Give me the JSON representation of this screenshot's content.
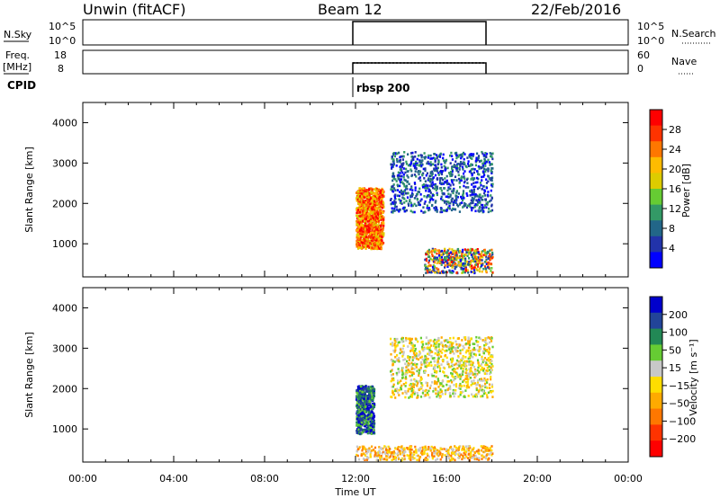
{
  "header": {
    "station": "Unwin (fitACF)",
    "beam": "Beam 12",
    "date": "22/Feb/2016"
  },
  "top_panels": {
    "nsky_label": "N.Sky",
    "nsearch_label": "N.Search",
    "freq_label_1": "Freq.",
    "freq_label_2": "[MHz]",
    "nave_label": "Nave",
    "cpid_label": "CPID",
    "cpid_value": "rbsp 200",
    "nsky_ticks_left": [
      "10^5",
      "10^0"
    ],
    "nsky_ticks_right": [
      "10^5",
      "10^0"
    ],
    "freq_ticks_left": [
      "18",
      "8"
    ],
    "nave_ticks_right": [
      "60",
      "0"
    ]
  },
  "power_colorbar": {
    "label": "Power [dB]",
    "ticks": [
      "28",
      "24",
      "20",
      "16",
      "12",
      "8",
      "4"
    ],
    "colors": [
      "#ff0000",
      "#ff3300",
      "#ff7700",
      "#ffbb00",
      "#ddcc00",
      "#66cc33",
      "#339966",
      "#226688",
      "#2233aa",
      "#0000ff"
    ]
  },
  "velocity_colorbar": {
    "label": "Velocity [m s⁻¹]",
    "ticks": [
      "200",
      "100",
      "50",
      "15",
      "−15",
      "−50",
      "−100",
      "−200"
    ],
    "colors": [
      "#0000cc",
      "#224499",
      "#228855",
      "#66cc33",
      "#c8c8c8",
      "#ffdd00",
      "#ffaa00",
      "#ff7700",
      "#ff3300",
      "#ff0000"
    ]
  },
  "chart_data": [
    {
      "type": "heatmap",
      "ylabel": "Slant Range [km]",
      "ylim": [
        180,
        4500
      ],
      "yticks": [
        1000,
        2000,
        3000,
        4000
      ],
      "xlim": [
        0,
        24
      ],
      "xticks_labels": [
        "00:00",
        "04:00",
        "08:00",
        "12:00",
        "16:00",
        "20:00",
        "00:00"
      ],
      "quantity": "Power [dB]",
      "regions": [
        {
          "t": [
            12.0,
            13.2
          ],
          "r": [
            900,
            2400
          ],
          "level": "high"
        },
        {
          "t": [
            13.5,
            18.0
          ],
          "r": [
            1800,
            3300
          ],
          "level": "low"
        },
        {
          "t": [
            15.0,
            18.0
          ],
          "r": [
            300,
            900
          ],
          "level": "mixed"
        }
      ]
    },
    {
      "type": "heatmap",
      "ylabel": "Slant Range [km]",
      "ylim": [
        180,
        4500
      ],
      "yticks": [
        1000,
        2000,
        3000,
        4000
      ],
      "xlim": [
        0,
        24
      ],
      "xticks_labels": [
        "00:00",
        "04:00",
        "08:00",
        "12:00",
        "16:00",
        "20:00",
        "00:00"
      ],
      "xlabel": "Time UT",
      "quantity": "Velocity [m s⁻¹]",
      "regions": [
        {
          "t": [
            12.0,
            12.8
          ],
          "r": [
            900,
            2100
          ],
          "level": "positive"
        },
        {
          "t": [
            13.5,
            18.0
          ],
          "r": [
            1800,
            3300
          ],
          "level": "near-zero"
        },
        {
          "t": [
            12.0,
            18.0
          ],
          "r": [
            250,
            600
          ],
          "level": "negative"
        }
      ]
    }
  ]
}
